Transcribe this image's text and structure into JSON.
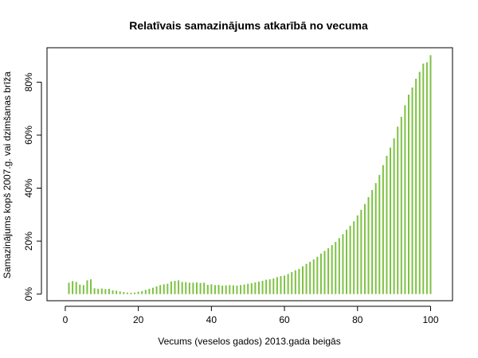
{
  "chart_data": {
    "type": "bar",
    "title": "Relatīvais samazinājums atkarībā no vecuma",
    "xlabel": "Vecums (veselos gados) 2013.gada beigās",
    "ylabel": "Samazinājums kopš 2007.g. vai dzimšanas brīža",
    "xlim": [
      -5,
      106
    ],
    "ylim": [
      -2.5,
      93
    ],
    "xticks": [
      0,
      20,
      40,
      60,
      80,
      100
    ],
    "xtick_labels": [
      "0",
      "20",
      "40",
      "60",
      "80",
      "100"
    ],
    "yticks": [
      0,
      20,
      40,
      60,
      80
    ],
    "ytick_labels": [
      "0%",
      "20%",
      "40%",
      "60%",
      "80%"
    ],
    "bar_color": "#7DC242",
    "x": [
      1,
      2,
      3,
      4,
      5,
      6,
      7,
      8,
      9,
      10,
      11,
      12,
      13,
      14,
      15,
      16,
      17,
      18,
      19,
      20,
      21,
      22,
      23,
      24,
      25,
      26,
      27,
      28,
      29,
      30,
      31,
      32,
      33,
      34,
      35,
      36,
      37,
      38,
      39,
      40,
      41,
      42,
      43,
      44,
      45,
      46,
      47,
      48,
      49,
      50,
      51,
      52,
      53,
      54,
      55,
      56,
      57,
      58,
      59,
      60,
      61,
      62,
      63,
      64,
      65,
      66,
      67,
      68,
      69,
      70,
      71,
      72,
      73,
      74,
      75,
      76,
      77,
      78,
      79,
      80,
      81,
      82,
      83,
      84,
      85,
      86,
      87,
      88,
      89,
      90,
      91,
      92,
      93,
      94,
      95,
      96,
      97,
      98,
      99,
      100
    ],
    "values": [
      4.3,
      4.9,
      4.6,
      3.6,
      3.4,
      5.2,
      5.6,
      2.2,
      2.0,
      2.1,
      1.9,
      2.0,
      1.4,
      1.3,
      1.0,
      0.8,
      0.6,
      0.5,
      0.6,
      0.9,
      1.1,
      1.6,
      2.0,
      2.4,
      2.9,
      3.4,
      3.7,
      3.9,
      4.8,
      5.0,
      5.2,
      4.6,
      4.5,
      4.3,
      4.3,
      4.4,
      4.2,
      4.3,
      3.5,
      3.7,
      3.4,
      3.5,
      3.2,
      3.3,
      3.4,
      3.3,
      3.2,
      3.4,
      3.6,
      3.9,
      4.1,
      4.4,
      4.7,
      5.0,
      5.4,
      5.6,
      5.9,
      6.4,
      6.8,
      7.0,
      7.6,
      8.3,
      9.0,
      9.5,
      10.5,
      11.4,
      12.2,
      13.1,
      14.1,
      15.3,
      16.3,
      17.3,
      18.5,
      19.7,
      21.1,
      22.6,
      24.3,
      25.8,
      27.5,
      29.7,
      31.8,
      34.0,
      36.6,
      39.3,
      41.9,
      45.0,
      48.7,
      52.2,
      55.3,
      58.8,
      63.2,
      66.9,
      71.3,
      75.3,
      78.0,
      81.3,
      83.9,
      87.0,
      87.5,
      90.2
    ],
    "grid": false,
    "legend": "none"
  }
}
